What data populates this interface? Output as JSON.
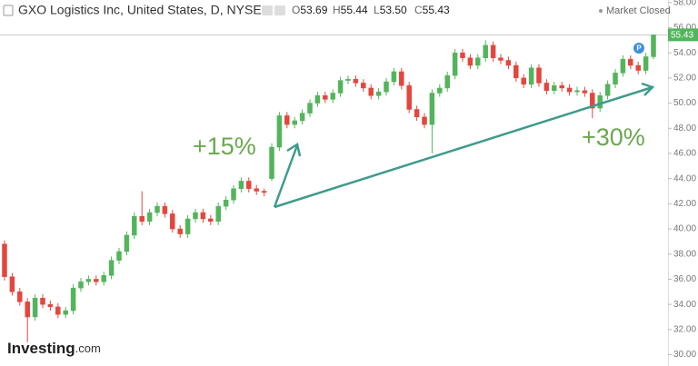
{
  "header": {
    "title": "GXO Logistics Inc, United States, D, NYSE",
    "ohlc_keys": [
      "O",
      "H",
      "L",
      "C"
    ],
    "ohlc_values": [
      "53.69",
      "55.44",
      "53.50",
      "55.43"
    ],
    "status": "Market Closed"
  },
  "logo": {
    "name": "Investing",
    "suffix": ".com"
  },
  "chart_data": {
    "type": "candlestick",
    "annotations": [
      "+15%",
      "+30%"
    ],
    "up_color": "#53b45c",
    "down_color": "#e2473f",
    "ylim": [
      29.1,
      58.2
    ],
    "yticks": [
      {
        "value": 30,
        "label": "30.00"
      },
      {
        "value": 32,
        "label": "32.00"
      },
      {
        "value": 34,
        "label": "34.00"
      },
      {
        "value": 36,
        "label": "36.00"
      },
      {
        "value": 38,
        "label": "38.00"
      },
      {
        "value": 40,
        "label": "40.00"
      },
      {
        "value": 42,
        "label": "42.00"
      },
      {
        "value": 44,
        "label": "44.00"
      },
      {
        "value": 46,
        "label": "46.00"
      },
      {
        "value": 48,
        "label": "48.00"
      },
      {
        "value": 50,
        "label": "50.00"
      },
      {
        "value": 52,
        "label": "52.00"
      },
      {
        "value": 54,
        "label": "54.00"
      },
      {
        "value": 56,
        "label": "56.00"
      },
      {
        "value": 58,
        "label": "58.00"
      }
    ],
    "open": [
      38.8,
      36.2,
      35.0,
      34.2,
      33.0,
      34.5,
      34.0,
      33.8,
      33.2,
      33.5,
      35.3,
      35.8,
      36.0,
      35.8,
      36.3,
      37.5,
      38.2,
      39.5,
      41.0,
      40.6,
      41.3,
      41.8,
      41.2,
      40.0,
      39.6,
      40.8,
      41.3,
      40.8,
      40.6,
      41.8,
      42.3,
      43.2,
      43.8,
      43.2,
      43.0,
      44.0,
      46.5,
      49.0,
      48.3,
      48.6,
      49.2,
      50.0,
      50.6,
      50.3,
      50.8,
      51.8,
      51.9,
      51.6,
      51.2,
      50.6,
      50.9,
      51.7,
      52.5,
      51.4,
      49.5,
      48.9,
      48.3,
      50.8,
      51.2,
      52.2,
      54.0,
      53.6,
      53.0,
      53.6,
      54.6,
      53.6,
      53.4,
      53.0,
      52.0,
      51.5,
      52.8,
      51.6,
      51.0,
      51.4,
      51.2,
      50.9,
      51.0,
      50.8,
      49.6,
      50.6,
      51.5,
      52.4,
      53.5,
      53.0,
      52.6,
      53.69
    ],
    "high": [
      39.1,
      36.5,
      35.3,
      34.5,
      34.8,
      34.8,
      34.3,
      34.1,
      33.8,
      35.6,
      36.1,
      36.3,
      36.3,
      36.6,
      37.8,
      38.5,
      39.8,
      41.3,
      43.0,
      41.6,
      42.1,
      42.1,
      41.5,
      40.3,
      41.1,
      41.6,
      41.6,
      41.1,
      42.1,
      42.6,
      43.5,
      44.1,
      44.1,
      43.5,
      43.2,
      46.8,
      49.3,
      49.3,
      48.9,
      49.5,
      50.3,
      50.9,
      50.9,
      51.1,
      52.1,
      52.2,
      52.2,
      51.9,
      51.5,
      51.2,
      52.0,
      52.8,
      52.8,
      51.7,
      49.8,
      49.2,
      51.1,
      51.5,
      52.5,
      54.3,
      54.3,
      53.9,
      53.9,
      55.0,
      54.9,
      53.9,
      53.7,
      53.3,
      52.3,
      53.1,
      53.1,
      51.9,
      51.7,
      51.7,
      51.5,
      51.3,
      51.3,
      51.1,
      50.9,
      51.8,
      52.7,
      53.8,
      53.8,
      53.3,
      54.0,
      55.44
    ],
    "low": [
      35.9,
      34.7,
      33.9,
      31.0,
      32.7,
      33.7,
      33.5,
      32.9,
      32.9,
      33.2,
      35.0,
      35.5,
      35.5,
      35.5,
      36.0,
      37.2,
      37.9,
      39.2,
      40.3,
      40.3,
      41.0,
      40.9,
      39.7,
      39.3,
      39.3,
      40.5,
      40.5,
      40.3,
      40.3,
      41.5,
      42.0,
      42.9,
      42.9,
      42.7,
      42.6,
      43.8,
      46.2,
      48.0,
      48.0,
      48.3,
      48.9,
      49.7,
      50.0,
      50.0,
      50.5,
      51.5,
      51.3,
      50.9,
      50.3,
      50.3,
      50.6,
      51.4,
      51.1,
      49.2,
      48.6,
      48.0,
      46.0,
      50.5,
      50.9,
      51.9,
      53.3,
      52.7,
      52.7,
      53.3,
      53.3,
      53.1,
      52.7,
      51.7,
      51.2,
      51.2,
      51.3,
      50.7,
      50.7,
      50.9,
      50.6,
      50.6,
      50.5,
      48.8,
      49.3,
      50.3,
      51.2,
      52.1,
      52.7,
      52.3,
      52.3,
      53.5
    ],
    "close": [
      36.2,
      35.0,
      34.2,
      33.0,
      34.5,
      34.0,
      33.8,
      33.2,
      33.5,
      35.3,
      35.8,
      36.0,
      35.8,
      36.3,
      37.5,
      38.2,
      39.5,
      41.0,
      40.6,
      41.3,
      41.8,
      41.2,
      40.0,
      39.6,
      40.8,
      41.3,
      40.8,
      40.6,
      41.8,
      42.3,
      43.2,
      43.8,
      43.2,
      43.0,
      42.9,
      46.5,
      49.0,
      48.3,
      48.6,
      49.2,
      50.0,
      50.6,
      50.3,
      50.8,
      51.8,
      51.9,
      51.6,
      51.2,
      50.6,
      50.9,
      51.7,
      52.5,
      51.4,
      49.5,
      48.9,
      48.3,
      50.8,
      51.2,
      52.2,
      54.0,
      53.6,
      53.0,
      53.6,
      54.6,
      53.6,
      53.4,
      53.0,
      52.0,
      51.5,
      52.8,
      51.6,
      51.0,
      51.4,
      51.2,
      50.9,
      51.0,
      50.8,
      49.6,
      50.6,
      51.5,
      52.4,
      53.5,
      53.0,
      52.6,
      53.69,
      55.43
    ]
  }
}
